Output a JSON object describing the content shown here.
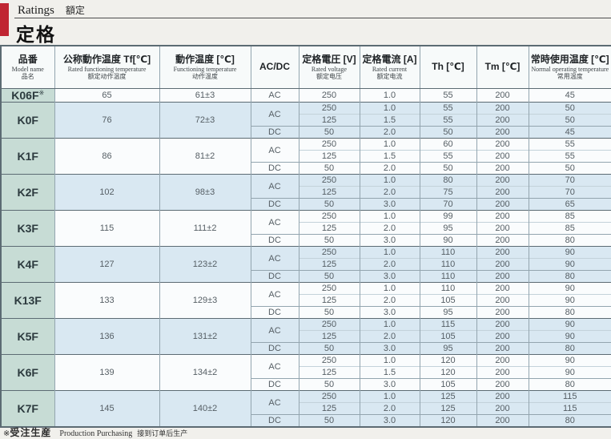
{
  "page": {
    "section_label_en": "Ratings",
    "section_label_cn": "額定",
    "title": "定格",
    "footnote": {
      "mark": "※",
      "jp": "受注生産",
      "en": "Production Purchasing",
      "cn": "接到订单后生产"
    }
  },
  "table": {
    "headers": [
      {
        "jp": "品番",
        "en": "Model name",
        "cn": "品名"
      },
      {
        "jp": "公称動作温度 Tf[℃]",
        "en": "Rated functioning temperature",
        "cn": "额定动作温度"
      },
      {
        "jp": "動作温度 [℃]",
        "en": "Functioning temperature",
        "cn": "动作温度"
      },
      {
        "jp": "AC/DC",
        "en": "",
        "cn": ""
      },
      {
        "jp": "定格電圧 [V]",
        "en": "Rated voltage",
        "cn": "额定电压"
      },
      {
        "jp": "定格電流 [A]",
        "en": "Rated current",
        "cn": "额定电流"
      },
      {
        "jp": "Th [℃]",
        "en": "",
        "cn": ""
      },
      {
        "jp": "Tm [℃]",
        "en": "",
        "cn": ""
      },
      {
        "jp": "常時使用温度 [℃]",
        "en": "Normal operating temperature",
        "cn": "常用温度"
      }
    ],
    "row_fields": [
      "voltage",
      "current",
      "th",
      "tm",
      "normal_operating_temp"
    ],
    "models": [
      {
        "name": "K06F",
        "mark": "※",
        "rated_tf": "65",
        "func_temp": "61±3",
        "band": "white",
        "groups": [
          {
            "acdc": "AC",
            "rows": [
              [
                "250",
                "1.0",
                "55",
                "200",
                "45"
              ]
            ]
          }
        ]
      },
      {
        "name": "K0F",
        "mark": "",
        "rated_tf": "76",
        "func_temp": "72±3",
        "band": "blue",
        "groups": [
          {
            "acdc": "AC",
            "rows": [
              [
                "250",
                "1.0",
                "55",
                "200",
                "50"
              ],
              [
                "125",
                "1.5",
                "55",
                "200",
                "50"
              ]
            ]
          },
          {
            "acdc": "DC",
            "rows": [
              [
                "50",
                "2.0",
                "50",
                "200",
                "45"
              ]
            ]
          }
        ]
      },
      {
        "name": "K1F",
        "mark": "",
        "rated_tf": "86",
        "func_temp": "81±2",
        "band": "white",
        "groups": [
          {
            "acdc": "AC",
            "rows": [
              [
                "250",
                "1.0",
                "60",
                "200",
                "55"
              ],
              [
                "125",
                "1.5",
                "55",
                "200",
                "55"
              ]
            ]
          },
          {
            "acdc": "DC",
            "rows": [
              [
                "50",
                "2.0",
                "50",
                "200",
                "50"
              ]
            ]
          }
        ]
      },
      {
        "name": "K2F",
        "mark": "",
        "rated_tf": "102",
        "func_temp": "98±3",
        "band": "blue",
        "groups": [
          {
            "acdc": "AC",
            "rows": [
              [
                "250",
                "1.0",
                "80",
                "200",
                "70"
              ],
              [
                "125",
                "2.0",
                "75",
                "200",
                "70"
              ]
            ]
          },
          {
            "acdc": "DC",
            "rows": [
              [
                "50",
                "3.0",
                "70",
                "200",
                "65"
              ]
            ]
          }
        ]
      },
      {
        "name": "K3F",
        "mark": "",
        "rated_tf": "115",
        "func_temp": "111±2",
        "band": "white",
        "groups": [
          {
            "acdc": "AC",
            "rows": [
              [
                "250",
                "1.0",
                "99",
                "200",
                "85"
              ],
              [
                "125",
                "2.0",
                "95",
                "200",
                "85"
              ]
            ]
          },
          {
            "acdc": "DC",
            "rows": [
              [
                "50",
                "3.0",
                "90",
                "200",
                "80"
              ]
            ]
          }
        ]
      },
      {
        "name": "K4F",
        "mark": "",
        "rated_tf": "127",
        "func_temp": "123±2",
        "band": "blue",
        "groups": [
          {
            "acdc": "AC",
            "rows": [
              [
                "250",
                "1.0",
                "110",
                "200",
                "90"
              ],
              [
                "125",
                "2.0",
                "110",
                "200",
                "90"
              ]
            ]
          },
          {
            "acdc": "DC",
            "rows": [
              [
                "50",
                "3.0",
                "110",
                "200",
                "80"
              ]
            ]
          }
        ]
      },
      {
        "name": "K13F",
        "mark": "",
        "rated_tf": "133",
        "func_temp": "129±3",
        "band": "white",
        "groups": [
          {
            "acdc": "AC",
            "rows": [
              [
                "250",
                "1.0",
                "110",
                "200",
                "90"
              ],
              [
                "125",
                "2.0",
                "105",
                "200",
                "90"
              ]
            ]
          },
          {
            "acdc": "DC",
            "rows": [
              [
                "50",
                "3.0",
                "95",
                "200",
                "80"
              ]
            ]
          }
        ]
      },
      {
        "name": "K5F",
        "mark": "",
        "rated_tf": "136",
        "func_temp": "131±2",
        "band": "blue",
        "groups": [
          {
            "acdc": "AC",
            "rows": [
              [
                "250",
                "1.0",
                "115",
                "200",
                "90"
              ],
              [
                "125",
                "2.0",
                "105",
                "200",
                "90"
              ]
            ]
          },
          {
            "acdc": "DC",
            "rows": [
              [
                "50",
                "3.0",
                "95",
                "200",
                "80"
              ]
            ]
          }
        ]
      },
      {
        "name": "K6F",
        "mark": "",
        "rated_tf": "139",
        "func_temp": "134±2",
        "band": "white",
        "groups": [
          {
            "acdc": "AC",
            "rows": [
              [
                "250",
                "1.0",
                "120",
                "200",
                "90"
              ],
              [
                "125",
                "1.5",
                "120",
                "200",
                "90"
              ]
            ]
          },
          {
            "acdc": "DC",
            "rows": [
              [
                "50",
                "3.0",
                "105",
                "200",
                "80"
              ]
            ]
          }
        ]
      },
      {
        "name": "K7F",
        "mark": "",
        "rated_tf": "145",
        "func_temp": "140±2",
        "band": "blue",
        "groups": [
          {
            "acdc": "AC",
            "rows": [
              [
                "250",
                "1.0",
                "125",
                "200",
                "115"
              ],
              [
                "125",
                "2.0",
                "125",
                "200",
                "115"
              ]
            ]
          },
          {
            "acdc": "DC",
            "rows": [
              [
                "50",
                "3.0",
                "120",
                "200",
                "80"
              ]
            ]
          }
        ]
      }
    ]
  }
}
